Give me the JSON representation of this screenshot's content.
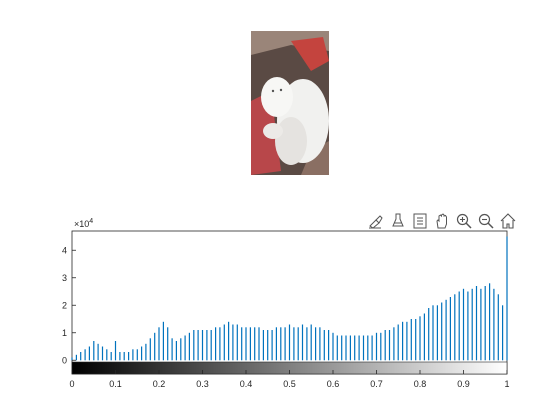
{
  "toolbar": {
    "buttons": [
      {
        "name": "brush-icon"
      },
      {
        "name": "data-tips-icon"
      },
      {
        "name": "legend-icon"
      },
      {
        "name": "pan-hand-icon"
      },
      {
        "name": "zoom-in-icon"
      },
      {
        "name": "zoom-out-icon"
      },
      {
        "name": "home-icon"
      }
    ]
  },
  "chart_data": {
    "type": "bar",
    "title": "",
    "xlabel": "",
    "ylabel": "",
    "xlim": [
      0,
      1
    ],
    "ylim": [
      -0.5,
      4.7
    ],
    "y_exponent_label": "×10",
    "y_exponent_power": "4",
    "x_ticks": [
      "0",
      "0.1",
      "0.2",
      "0.3",
      "0.4",
      "0.5",
      "0.6",
      "0.7",
      "0.8",
      "0.9",
      "1"
    ],
    "y_ticks": [
      "0",
      "1",
      "2",
      "3",
      "4"
    ],
    "bar_color": "#0072bd",
    "colorbar": "grayscale 0 to 1",
    "series": [
      {
        "x": [
          0.0,
          0.01,
          0.02,
          0.03,
          0.04,
          0.05,
          0.06,
          0.07,
          0.08,
          0.09,
          0.1,
          0.11,
          0.12,
          0.13,
          0.14,
          0.15,
          0.16,
          0.17,
          0.18,
          0.19,
          0.2,
          0.21,
          0.22,
          0.23,
          0.24,
          0.25,
          0.26,
          0.27,
          0.28,
          0.29,
          0.3,
          0.31,
          0.32,
          0.33,
          0.34,
          0.35,
          0.36,
          0.37,
          0.38,
          0.39,
          0.4,
          0.41,
          0.42,
          0.43,
          0.44,
          0.45,
          0.46,
          0.47,
          0.48,
          0.49,
          0.5,
          0.51,
          0.52,
          0.53,
          0.54,
          0.55,
          0.56,
          0.57,
          0.58,
          0.59,
          0.6,
          0.61,
          0.62,
          0.63,
          0.64,
          0.65,
          0.66,
          0.67,
          0.68,
          0.69,
          0.7,
          0.71,
          0.72,
          0.73,
          0.74,
          0.75,
          0.76,
          0.77,
          0.78,
          0.79,
          0.8,
          0.81,
          0.82,
          0.83,
          0.84,
          0.85,
          0.86,
          0.87,
          0.88,
          0.89,
          0.9,
          0.91,
          0.92,
          0.93,
          0.94,
          0.95,
          0.96,
          0.97,
          0.98,
          0.99,
          1.0
        ],
        "values": [
          0.1,
          0.2,
          0.3,
          0.4,
          0.5,
          0.7,
          0.6,
          0.5,
          0.4,
          0.3,
          0.7,
          0.3,
          0.3,
          0.3,
          0.4,
          0.4,
          0.5,
          0.6,
          0.8,
          1.0,
          1.2,
          1.4,
          1.2,
          0.8,
          0.7,
          0.8,
          0.9,
          1.0,
          1.1,
          1.1,
          1.1,
          1.1,
          1.1,
          1.2,
          1.2,
          1.3,
          1.4,
          1.3,
          1.3,
          1.2,
          1.2,
          1.2,
          1.2,
          1.2,
          1.1,
          1.1,
          1.1,
          1.2,
          1.2,
          1.2,
          1.3,
          1.2,
          1.2,
          1.3,
          1.2,
          1.3,
          1.2,
          1.2,
          1.1,
          1.1,
          1.0,
          0.9,
          0.9,
          0.9,
          0.9,
          0.9,
          0.9,
          0.9,
          0.9,
          0.9,
          1.0,
          1.0,
          1.1,
          1.1,
          1.2,
          1.3,
          1.4,
          1.4,
          1.5,
          1.5,
          1.6,
          1.7,
          1.9,
          2.0,
          2.0,
          2.1,
          2.2,
          2.3,
          2.4,
          2.5,
          2.6,
          2.5,
          2.6,
          2.7,
          2.6,
          2.7,
          2.8,
          2.6,
          2.4,
          2.0,
          4.5
        ]
      }
    ]
  }
}
